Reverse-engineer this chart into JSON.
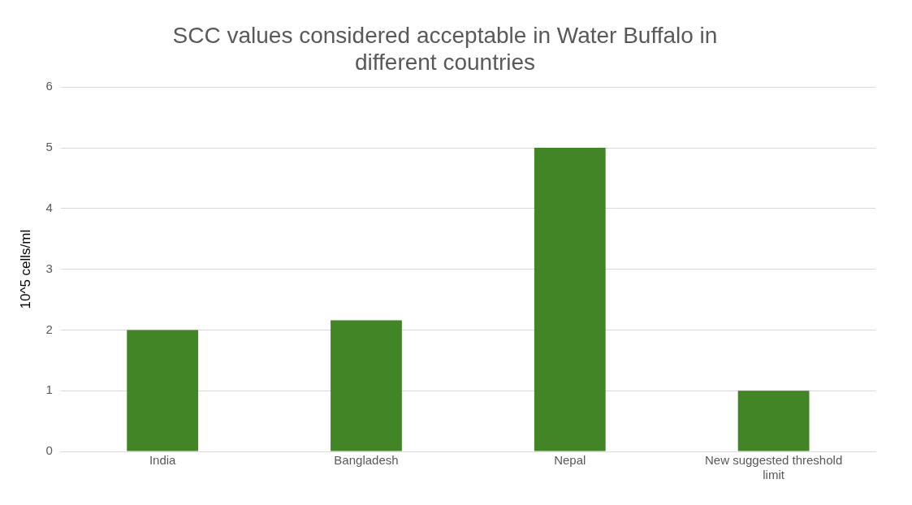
{
  "chart_data": {
    "type": "bar",
    "title": "SCC values considered acceptable in Water Buffalo in different countries",
    "ylabel": "10^5 cells/ml",
    "categories": [
      "India",
      "Bangladesh",
      "Nepal",
      "New suggested threshold limit"
    ],
    "values": [
      2,
      2.16,
      5,
      1
    ],
    "color": "#428527",
    "ylim": [
      0,
      6
    ],
    "yticks": [
      0,
      1,
      2,
      3,
      4,
      5,
      6
    ],
    "grid": "y"
  }
}
